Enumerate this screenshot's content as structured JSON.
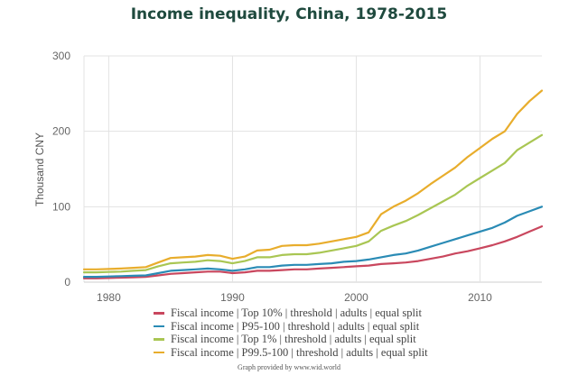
{
  "chart_data": {
    "type": "line",
    "title": "Income inequality, China, 1978-2015",
    "xlabel": "",
    "ylabel": "Thousand CNY",
    "xlim": [
      1978,
      2015
    ],
    "ylim": [
      0,
      300
    ],
    "x_ticks": [
      1980,
      1990,
      2000,
      2010
    ],
    "y_ticks": [
      0,
      100,
      200,
      300
    ],
    "grid": true,
    "legend_position": "bottom",
    "x": [
      1978,
      1979,
      1980,
      1981,
      1982,
      1983,
      1984,
      1985,
      1986,
      1987,
      1988,
      1989,
      1990,
      1991,
      1992,
      1993,
      1994,
      1995,
      1996,
      1997,
      1998,
      1999,
      2000,
      2001,
      2002,
      2003,
      2004,
      2005,
      2006,
      2007,
      2008,
      2009,
      2010,
      2011,
      2012,
      2013,
      2014,
      2015
    ],
    "series": [
      {
        "name": "Fiscal income | Top 10% | threshold | adults | equal split",
        "color": "#c9475e",
        "values": [
          5,
          5,
          5.5,
          6,
          6.5,
          7,
          9,
          11,
          12,
          13,
          14,
          14,
          12,
          13,
          15,
          15,
          16,
          17,
          17,
          18,
          19,
          20,
          21,
          22,
          24,
          25,
          26,
          28,
          31,
          34,
          38,
          41,
          45,
          49,
          54,
          60,
          67,
          74
        ]
      },
      {
        "name": "Fiscal income | P95-100 | threshold | adults | equal split",
        "color": "#2a8bb5",
        "values": [
          7,
          7,
          7.5,
          8,
          8.5,
          9,
          12,
          15,
          16,
          17,
          18,
          17,
          15,
          17,
          20,
          20,
          22,
          23,
          23,
          24,
          25,
          27,
          28,
          30,
          33,
          36,
          38,
          42,
          47,
          52,
          57,
          62,
          67,
          72,
          79,
          88,
          94,
          100
        ]
      },
      {
        "name": "Fiscal income | Top 1% | threshold | adults | equal split",
        "color": "#a9c653",
        "values": [
          13,
          13,
          13.5,
          14,
          15,
          16,
          21,
          25,
          26,
          27,
          29,
          28,
          25,
          28,
          33,
          33,
          36,
          37,
          37,
          39,
          42,
          45,
          48,
          54,
          68,
          75,
          81,
          89,
          98,
          107,
          116,
          128,
          138,
          148,
          158,
          175,
          185,
          195
        ]
      },
      {
        "name": "Fiscal income | P99.5-100 | threshold | adults | equal split",
        "color": "#e8ad2c",
        "values": [
          17,
          17,
          17.5,
          18,
          19,
          20,
          26,
          32,
          33,
          34,
          36,
          35,
          31,
          34,
          42,
          43,
          48,
          49,
          49,
          51,
          54,
          57,
          60,
          66,
          90,
          100,
          108,
          118,
          130,
          141,
          152,
          166,
          178,
          190,
          200,
          223,
          240,
          254
        ]
      }
    ],
    "credit": "Graph provided by www.wid.world"
  }
}
